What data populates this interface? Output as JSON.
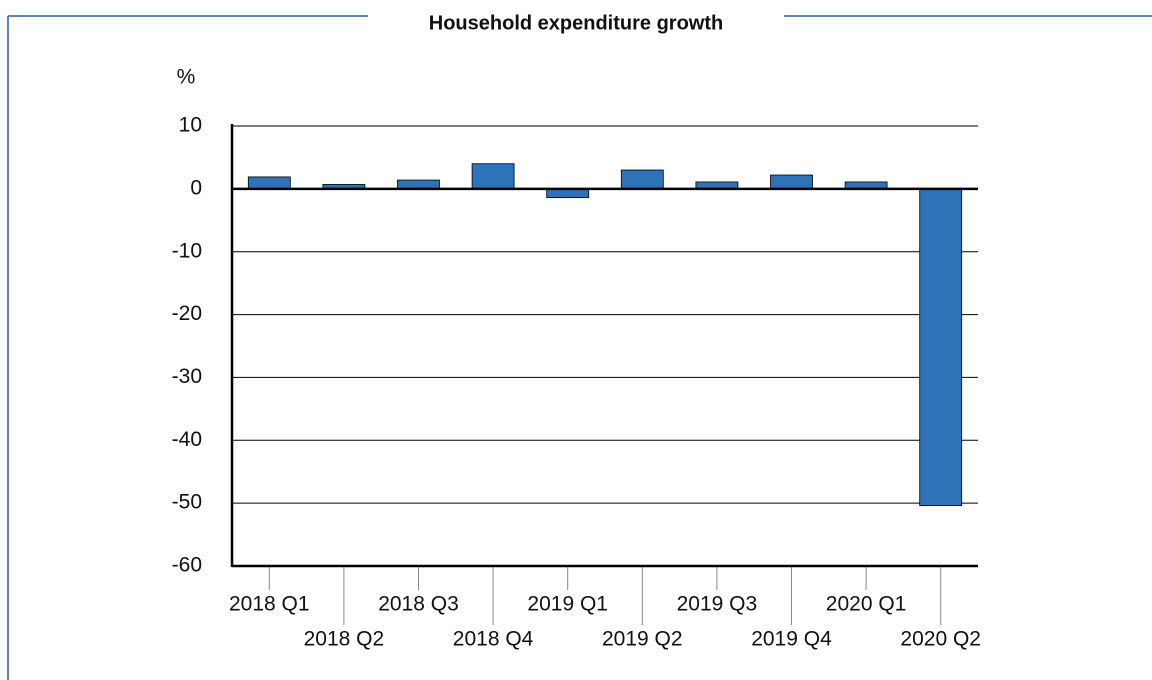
{
  "chart_data": {
    "type": "bar",
    "title": "Household expenditure growth",
    "y_label": "%",
    "categories": [
      "2018 Q1",
      "2018 Q2",
      "2018 Q3",
      "2018 Q4",
      "2019 Q1",
      "2019 Q2",
      "2019 Q3",
      "2019 Q4",
      "2020 Q1",
      "2020 Q2"
    ],
    "values": [
      1.9,
      0.7,
      1.4,
      4.0,
      -1.4,
      3.0,
      1.1,
      2.2,
      1.1,
      -50.4
    ],
    "color": "#2e72b8",
    "ylim": [
      -60,
      10
    ],
    "yticks": [
      -60,
      -50,
      -40,
      -30,
      -20,
      -10,
      0,
      10
    ],
    "grid": true
  }
}
